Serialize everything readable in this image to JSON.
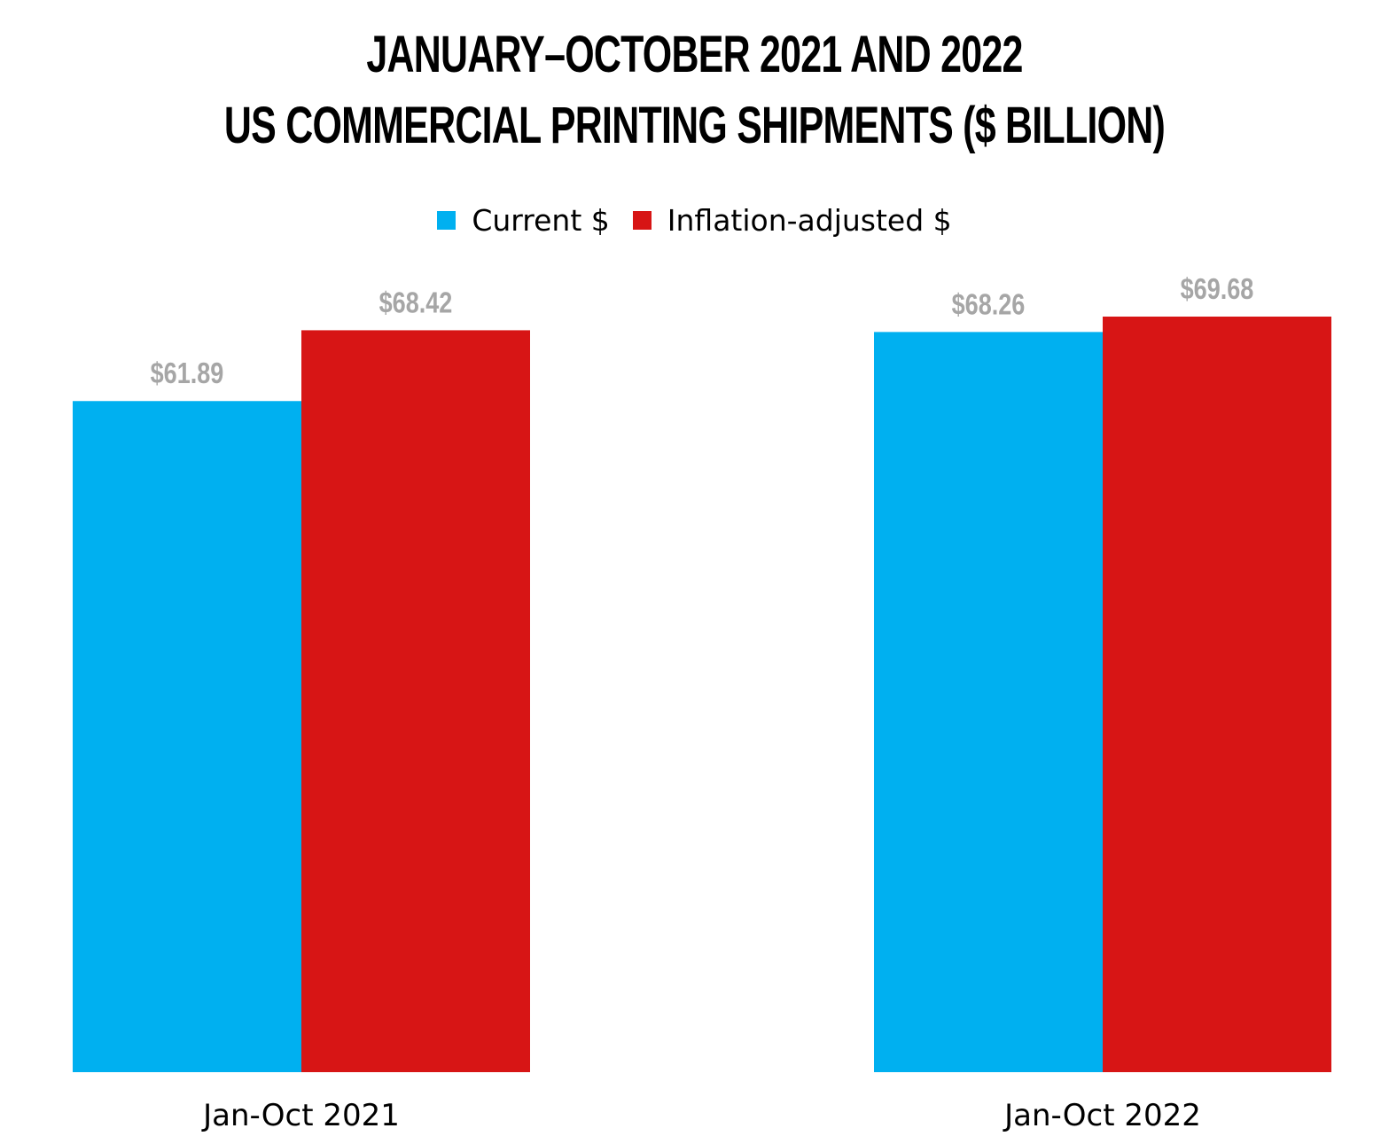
{
  "chart_data": {
    "type": "bar",
    "title": "JANUARY–OCTOBER 2021 AND 2022",
    "subtitle": "US COMMERCIAL PRINTING SHIPMENTS ($ BILLION)",
    "categories": [
      "Jan-Oct 2021",
      "Jan-Oct 2022"
    ],
    "series": [
      {
        "name": "Current $",
        "color": "#00b0f0",
        "values": [
          61.89,
          68.26
        ],
        "labels": [
          "$61.89",
          "$68.26"
        ]
      },
      {
        "name": "Inflation-adjusted $",
        "color": "#d71515",
        "values": [
          68.42,
          69.68
        ],
        "labels": [
          "$68.42",
          "$69.68"
        ]
      }
    ],
    "ylim": [
      0,
      69.68
    ],
    "grid": false,
    "legend_position": "top-center",
    "data_label_color": "#a6a6a6"
  }
}
